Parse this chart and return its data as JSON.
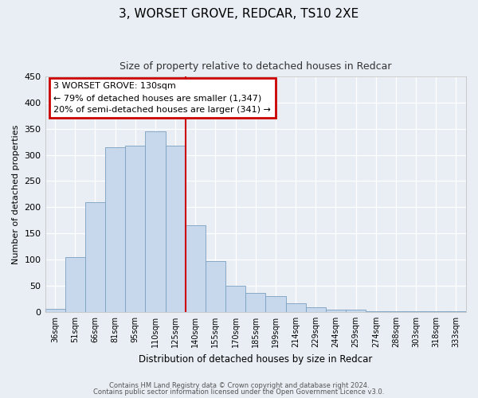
{
  "title": "3, WORSET GROVE, REDCAR, TS10 2XE",
  "subtitle": "Size of property relative to detached houses in Redcar",
  "xlabel": "Distribution of detached houses by size in Redcar",
  "ylabel": "Number of detached properties",
  "bin_labels": [
    "36sqm",
    "51sqm",
    "66sqm",
    "81sqm",
    "95sqm",
    "110sqm",
    "125sqm",
    "140sqm",
    "155sqm",
    "170sqm",
    "185sqm",
    "199sqm",
    "214sqm",
    "229sqm",
    "244sqm",
    "259sqm",
    "274sqm",
    "288sqm",
    "303sqm",
    "318sqm",
    "333sqm"
  ],
  "bar_heights": [
    6,
    105,
    210,
    315,
    317,
    345,
    318,
    165,
    97,
    50,
    36,
    30,
    17,
    9,
    5,
    5,
    2,
    1,
    1,
    1,
    2
  ],
  "bar_color": "#c8d8ec",
  "bar_edge_color": "#7aA0c0",
  "vline_color": "#cc0000",
  "annotation_title": "3 WORSET GROVE: 130sqm",
  "annotation_line1": "← 79% of detached houses are smaller (1,347)",
  "annotation_line2": "20% of semi-detached houses are larger (341) →",
  "annotation_box_color": "#cc0000",
  "annotation_bg": "#ffffff",
  "ylim": [
    0,
    450
  ],
  "yticks": [
    0,
    50,
    100,
    150,
    200,
    250,
    300,
    350,
    400,
    450
  ],
  "footer_line1": "Contains HM Land Registry data © Crown copyright and database right 2024.",
  "footer_line2": "Contains public sector information licensed under the Open Government Licence v3.0.",
  "bg_color": "#e8eef4",
  "plot_bg_color": "#e8eef4",
  "grid_color": "#ffffff"
}
